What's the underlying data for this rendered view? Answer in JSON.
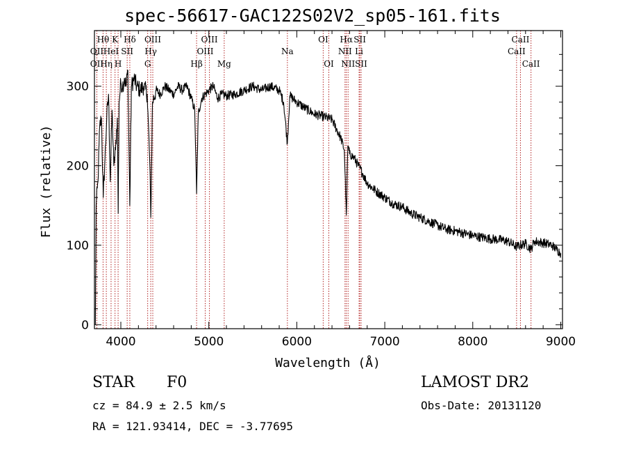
{
  "chart_data": {
    "type": "line",
    "title": "spec-56617-GAC122S02V2_sp05-161.fits",
    "xlabel": "Wavelength (Å)",
    "ylabel": "Flux (relative)",
    "xlim": [
      3700,
      9020
    ],
    "ylim": [
      -5,
      370
    ],
    "xticks": [
      4000,
      5000,
      6000,
      7000,
      8000,
      9000
    ],
    "yticks": [
      0,
      100,
      200,
      300
    ],
    "grid": false,
    "series": [
      {
        "x": [
          3710,
          3720,
          3740,
          3760,
          3780,
          3800,
          3820,
          3840,
          3860,
          3880,
          3900,
          3920,
          3940,
          3960,
          3970,
          3980,
          4000,
          4020,
          4040,
          4060,
          4080,
          4102,
          4120,
          4150,
          4180,
          4220,
          4260,
          4300,
          4330,
          4340,
          4360,
          4400,
          4450,
          4500,
          4550,
          4600,
          4650,
          4700,
          4750,
          4800,
          4840,
          4861,
          4880,
          4920,
          4960,
          5000,
          5050,
          5100,
          5150,
          5200,
          5300,
          5400,
          5500,
          5600,
          5700,
          5800,
          5850,
          5893,
          5920,
          6000,
          6100,
          6200,
          6300,
          6400,
          6500,
          6540,
          6563,
          6580,
          6600,
          6650,
          6700,
          6750,
          6800,
          6900,
          7000,
          7100,
          7200,
          7300,
          7400,
          7500,
          7600,
          7700,
          7800,
          7900,
          8000,
          8100,
          8200,
          8300,
          8400,
          8498,
          8542,
          8600,
          8662,
          8700,
          8800,
          8900,
          8950,
          9000
        ],
        "y": [
          0,
          150,
          180,
          250,
          260,
          160,
          210,
          260,
          290,
          180,
          270,
          200,
          220,
          260,
          140,
          280,
          305,
          300,
          310,
          300,
          320,
          150,
          300,
          310,
          300,
          295,
          300,
          290,
          200,
          135,
          280,
          295,
          290,
          300,
          295,
          290,
          300,
          295,
          300,
          285,
          270,
          165,
          265,
          285,
          290,
          295,
          300,
          285,
          290,
          288,
          290,
          295,
          300,
          295,
          300,
          295,
          280,
          228,
          288,
          280,
          272,
          265,
          262,
          258,
          235,
          220,
          138,
          225,
          215,
          210,
          200,
          190,
          178,
          168,
          160,
          152,
          148,
          140,
          135,
          130,
          125,
          120,
          118,
          115,
          112,
          110,
          108,
          107,
          105,
          98,
          100,
          102,
          95,
          105,
          103,
          100,
          95,
          90
        ]
      }
    ],
    "line_labels": [
      {
        "text": "Hθ",
        "x": 3798,
        "row": 1
      },
      {
        "text": "OII",
        "x": 3727,
        "row": 2
      },
      {
        "text": "OII",
        "x": 3727,
        "row": 3
      },
      {
        "text": "K",
        "x": 3934,
        "row": 1
      },
      {
        "text": "H",
        "x": 3969,
        "row": 3
      },
      {
        "text": "HeI",
        "x": 3889,
        "row": 2
      },
      {
        "text": "Hη",
        "x": 3835,
        "row": 3
      },
      {
        "text": "Hδ",
        "x": 4102,
        "row": 1
      },
      {
        "text": "SII",
        "x": 4072,
        "row": 2
      },
      {
        "text": "OIII",
        "x": 4363,
        "row": 1
      },
      {
        "text": "Hγ",
        "x": 4340,
        "row": 2
      },
      {
        "text": "G",
        "x": 4305,
        "row": 3
      },
      {
        "text": "OIII",
        "x": 5007,
        "row": 1
      },
      {
        "text": "OIII",
        "x": 4959,
        "row": 2
      },
      {
        "text": "Hβ",
        "x": 4861,
        "row": 3
      },
      {
        "text": "Mg",
        "x": 5175,
        "row": 3
      },
      {
        "text": "Na",
        "x": 5893,
        "row": 2
      },
      {
        "text": "OI",
        "x": 6300,
        "row": 1
      },
      {
        "text": "OI",
        "x": 6364,
        "row": 3
      },
      {
        "text": "Hα",
        "x": 6563,
        "row": 1
      },
      {
        "text": "SII",
        "x": 6716,
        "row": 1
      },
      {
        "text": "NII",
        "x": 6548,
        "row": 2
      },
      {
        "text": "Li",
        "x": 6708,
        "row": 2
      },
      {
        "text": "NII",
        "x": 6583,
        "row": 3
      },
      {
        "text": "SII",
        "x": 6731,
        "row": 3
      },
      {
        "text": "CaII",
        "x": 8542,
        "row": 1
      },
      {
        "text": "CaII",
        "x": 8498,
        "row": 2
      },
      {
        "text": "CaII",
        "x": 8662,
        "row": 3
      }
    ],
    "line_marks_x": [
      3727,
      3798,
      3835,
      3889,
      3934,
      3969,
      4072,
      4102,
      4305,
      4340,
      4363,
      4861,
      4959,
      5007,
      5175,
      5893,
      6300,
      6364,
      6548,
      6563,
      6583,
      6708,
      6716,
      6731,
      8498,
      8542,
      8662
    ]
  },
  "info": {
    "class": "STAR",
    "subclass": "F0",
    "survey": "LAMOST DR2",
    "cz": "cz = 84.9 ± 2.5 km/s",
    "obs_date": "Obs-Date: 20131120",
    "coords": "RA = 121.93414, DEC =  -3.77695"
  },
  "colors": {
    "spectrum": "#000000",
    "line_marks": "#b22222",
    "axes": "#000000"
  }
}
